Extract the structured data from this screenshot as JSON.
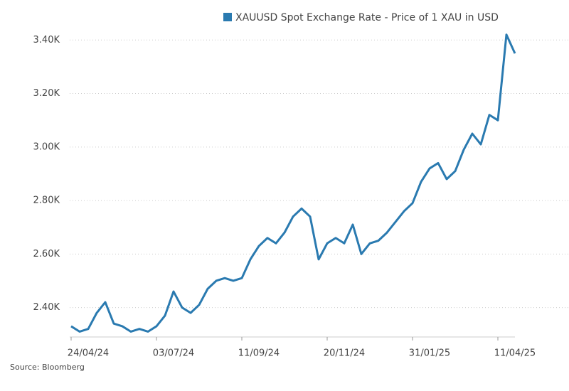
{
  "chart_data": {
    "type": "line",
    "series": [
      {
        "name": "XAUUSD Spot Exchange Rate - Price of 1 XAU in USD",
        "color": "#2a7ab0",
        "values": [
          2330,
          2310,
          2320,
          2380,
          2420,
          2340,
          2330,
          2310,
          2320,
          2310,
          2330,
          2370,
          2460,
          2400,
          2380,
          2410,
          2470,
          2500,
          2510,
          2500,
          2510,
          2580,
          2630,
          2660,
          2640,
          2680,
          2740,
          2770,
          2740,
          2580,
          2640,
          2660,
          2640,
          2710,
          2600,
          2640,
          2650,
          2680,
          2720,
          2760,
          2790,
          2870,
          2920,
          2940,
          2880,
          2910,
          2990,
          3050,
          3010,
          3120,
          3100,
          3420,
          3350
        ]
      }
    ],
    "categories": [
      "24/04/24",
      null,
      null,
      null,
      null,
      null,
      null,
      null,
      null,
      null,
      "03/07/24",
      null,
      null,
      null,
      null,
      null,
      null,
      null,
      null,
      null,
      "11/09/24",
      null,
      null,
      null,
      null,
      null,
      null,
      null,
      null,
      null,
      "20/11/24",
      null,
      null,
      null,
      null,
      null,
      null,
      null,
      null,
      null,
      "31/01/25",
      null,
      null,
      null,
      null,
      null,
      null,
      null,
      null,
      null,
      "11/04/25",
      null,
      null
    ],
    "ylim": [
      2290,
      3430
    ],
    "yticks": [
      {
        "value": 2400,
        "label": "2.40K"
      },
      {
        "value": 2600,
        "label": "2.60K"
      },
      {
        "value": 2800,
        "label": "2.80K"
      },
      {
        "value": 3000,
        "label": "3.00K"
      },
      {
        "value": 3200,
        "label": "3.20K"
      },
      {
        "value": 3400,
        "label": "3.40K"
      }
    ],
    "grid": true,
    "source": "Source: Bloomberg"
  }
}
